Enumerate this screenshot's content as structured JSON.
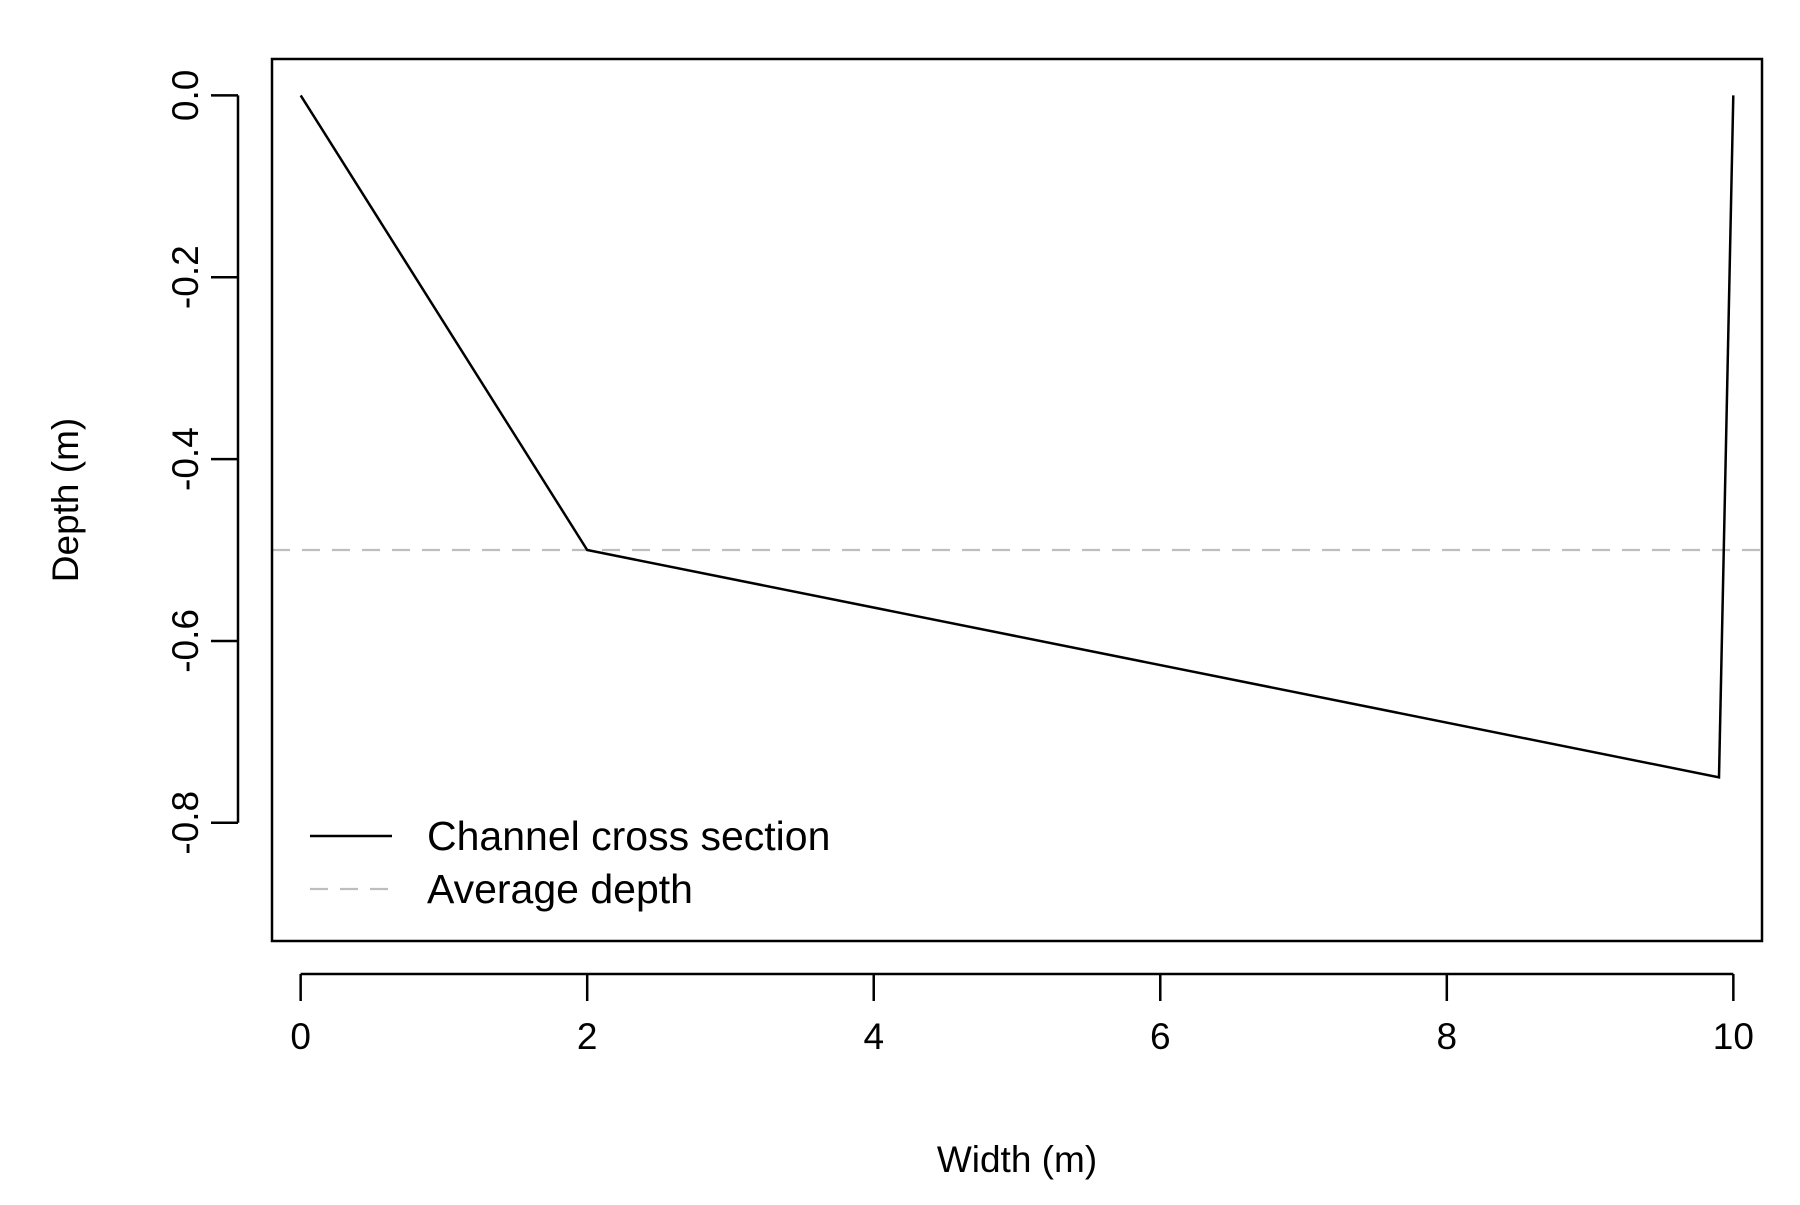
{
  "chart_data": {
    "type": "line",
    "title": "",
    "xlabel": "Width (m)",
    "ylabel": "Depth (m)",
    "xlim": [
      -0.2,
      10.2
    ],
    "ylim": [
      -0.93,
      0.04
    ],
    "x_ticks": [
      0,
      2,
      4,
      6,
      8,
      10
    ],
    "x_tick_labels": [
      "0",
      "2",
      "4",
      "6",
      "8",
      "10"
    ],
    "y_ticks": [
      0.0,
      -0.2,
      -0.4,
      -0.6,
      -0.8
    ],
    "y_tick_labels": [
      "0.0",
      "-0.2",
      "-0.4",
      "-0.6",
      "-0.8"
    ],
    "grid": false,
    "legend_position": "bottom-left",
    "series": [
      {
        "name": "Channel cross section",
        "style": "solid",
        "color": "#000000",
        "x": [
          0,
          2,
          9.9,
          10
        ],
        "y": [
          0,
          -0.5,
          -0.75,
          0
        ]
      },
      {
        "name": "Average depth",
        "style": "dashed",
        "color": "#bebebe",
        "type": "hline",
        "y": -0.5
      }
    ]
  }
}
